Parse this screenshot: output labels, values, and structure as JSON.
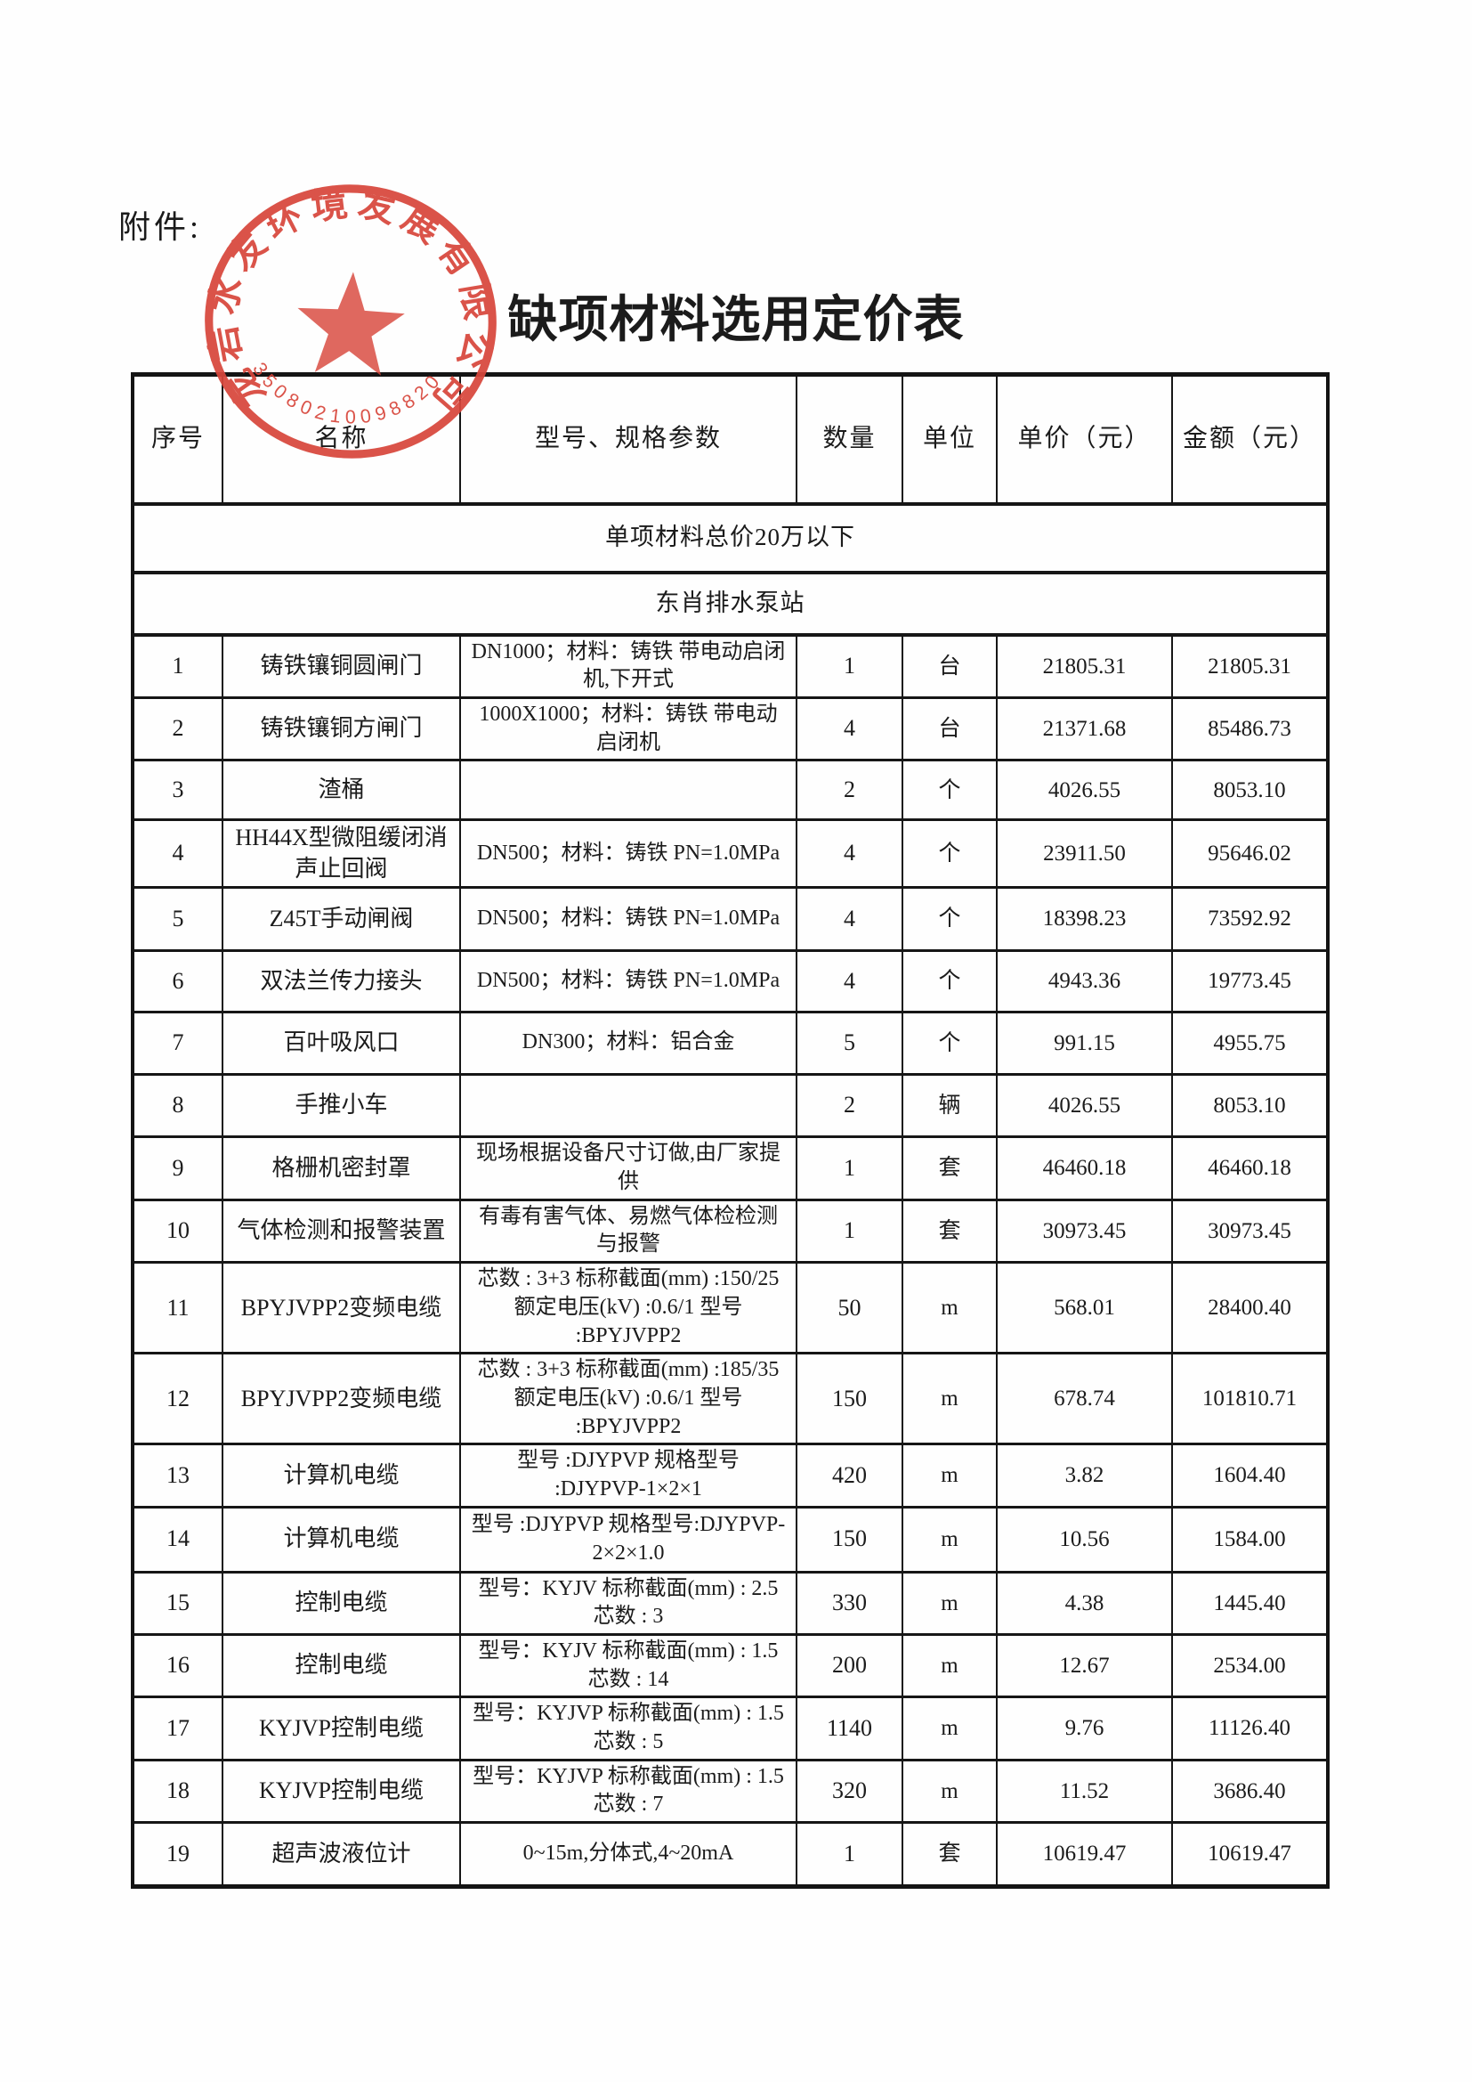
{
  "doc": {
    "attachment_label": "附件:",
    "title": "缺项材料选用定价表"
  },
  "stamp": {
    "company": "龙岩水发环境发展有限公司",
    "serial": "35080210098820",
    "color": "#d8473c"
  },
  "table": {
    "columns": [
      "序号",
      "名称",
      "型号、规格参数",
      "数量",
      "单位",
      "单价（元）",
      "金额（元）"
    ],
    "sections": [
      "单项材料总价20万以下",
      "东肖排水泵站"
    ],
    "rows": [
      {
        "no": "1",
        "name": "铸铁镶铜圆闸门",
        "spec": "DN1000；材料：铸铁 带电动启闭机,下开式",
        "qty": "1",
        "unit": "台",
        "price": "21805.31",
        "amount": "21805.31"
      },
      {
        "no": "2",
        "name": "铸铁镶铜方闸门",
        "spec": "1000X1000；材料：铸铁 带电动启闭机",
        "qty": "4",
        "unit": "台",
        "price": "21371.68",
        "amount": "85486.73"
      },
      {
        "no": "3",
        "name": "渣桶",
        "spec": "",
        "qty": "2",
        "unit": "个",
        "price": "4026.55",
        "amount": "8053.10"
      },
      {
        "no": "4",
        "name": "HH44X型微阻缓闭消声止回阀",
        "spec": "DN500；材料：铸铁 PN=1.0MPa",
        "qty": "4",
        "unit": "个",
        "price": "23911.50",
        "amount": "95646.02"
      },
      {
        "no": "5",
        "name": "Z45T手动闸阀",
        "spec": "DN500；材料：铸铁 PN=1.0MPa",
        "qty": "4",
        "unit": "个",
        "price": "18398.23",
        "amount": "73592.92"
      },
      {
        "no": "6",
        "name": "双法兰传力接头",
        "spec": "DN500；材料：铸铁 PN=1.0MPa",
        "qty": "4",
        "unit": "个",
        "price": "4943.36",
        "amount": "19773.45"
      },
      {
        "no": "7",
        "name": "百叶吸风口",
        "spec": "DN300；材料：铝合金",
        "qty": "5",
        "unit": "个",
        "price": "991.15",
        "amount": "4955.75"
      },
      {
        "no": "8",
        "name": "手推小车",
        "spec": "",
        "qty": "2",
        "unit": "辆",
        "price": "4026.55",
        "amount": "8053.10"
      },
      {
        "no": "9",
        "name": "格栅机密封罩",
        "spec": "现场根据设备尺寸订做,由厂家提供",
        "qty": "1",
        "unit": "套",
        "price": "46460.18",
        "amount": "46460.18"
      },
      {
        "no": "10",
        "name": "气体检测和报警装置",
        "spec": "有毒有害气体、易燃气体检检测与报警",
        "qty": "1",
        "unit": "套",
        "price": "30973.45",
        "amount": "30973.45"
      },
      {
        "no": "11",
        "name": "BPYJVPP2变频电缆",
        "spec": "芯数 : 3+3 标称截面(mm) :150/25 额定电压(kV) :0.6/1 型号 :BPYJVPP2",
        "qty": "50",
        "unit": "m",
        "price": "568.01",
        "amount": "28400.40"
      },
      {
        "no": "12",
        "name": "BPYJVPP2变频电缆",
        "spec": "芯数 : 3+3 标称截面(mm) :185/35 额定电压(kV) :0.6/1 型号 :BPYJVPP2",
        "qty": "150",
        "unit": "m",
        "price": "678.74",
        "amount": "101810.71"
      },
      {
        "no": "13",
        "name": "计算机电缆",
        "spec": "型号 :DJYPVP 规格型号 :DJYPVP-1×2×1",
        "qty": "420",
        "unit": "m",
        "price": "3.82",
        "amount": "1604.40"
      },
      {
        "no": "14",
        "name": "计算机电缆",
        "spec": "型号 :DJYPVP 规格型号:DJYPVP-2×2×1.0",
        "qty": "150",
        "unit": "m",
        "price": "10.56",
        "amount": "1584.00"
      },
      {
        "no": "15",
        "name": "控制电缆",
        "spec": "型号：KYJV 标称截面(mm) : 2.5 芯数 : 3",
        "qty": "330",
        "unit": "m",
        "price": "4.38",
        "amount": "1445.40"
      },
      {
        "no": "16",
        "name": "控制电缆",
        "spec": "型号：KYJV 标称截面(mm) : 1.5 芯数 : 14",
        "qty": "200",
        "unit": "m",
        "price": "12.67",
        "amount": "2534.00"
      },
      {
        "no": "17",
        "name": "KYJVP控制电缆",
        "spec": "型号：KYJVP 标称截面(mm) : 1.5 芯数 : 5",
        "qty": "1140",
        "unit": "m",
        "price": "9.76",
        "amount": "11126.40"
      },
      {
        "no": "18",
        "name": "KYJVP控制电缆",
        "spec": "型号：KYJVP 标称截面(mm) : 1.5 芯数 : 7",
        "qty": "320",
        "unit": "m",
        "price": "11.52",
        "amount": "3686.40"
      },
      {
        "no": "19",
        "name": "超声波液位计",
        "spec": "0~15m,分体式,4~20mA",
        "qty": "1",
        "unit": "套",
        "price": "10619.47",
        "amount": "10619.47"
      }
    ]
  }
}
